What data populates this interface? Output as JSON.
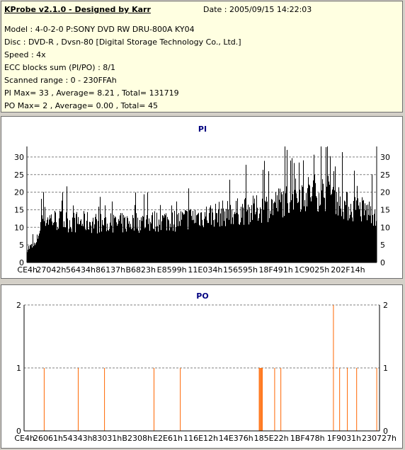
{
  "header": {
    "title": "KProbe v2.1.0 - Designed by Karr",
    "date_label": "Date : 2005/09/15 14:22:03"
  },
  "info_lines": [
    "Model : 4-0-2-0 P:SONY    DVD RW DRU-800A  KY04",
    "Disc : DVD-R , Dvsn-80 [Digital Storage Technology Co., Ltd.]",
    "Speed : 4x",
    "ECC blocks sum (PI/PO) : 8/1",
    "Scanned range : 0 - 230FFAh",
    "PI Max= 33 , Average= 8.21 , Total= 131719",
    "PO Max= 2 , Average= 0.00 , Total= 45"
  ],
  "colors": {
    "pi_bars": "#000000",
    "po_bars": "#ff6600",
    "title_text": "#000080",
    "grid": "#808080"
  },
  "chart_data": [
    {
      "type": "bar",
      "title": "PI",
      "ylim": [
        0,
        33
      ],
      "yticks": [
        0,
        5,
        10,
        15,
        20,
        25,
        30
      ],
      "xlim": [
        0,
        2297850
      ],
      "xtick_labels": [
        "CE4h",
        "27042h",
        "56434h",
        "86137h",
        "B6823h",
        "E8599h",
        "11E034h",
        "156595h",
        "18F491h",
        "1C9025h",
        "202F14h"
      ],
      "xtick_values": [
        3300,
        159810,
        353332,
        549175,
        747555,
        951705,
        1171508,
        1402261,
        1635473,
        1871909,
        2109204
      ],
      "grid": "horizontal dashed",
      "profile_x": [
        0,
        60000,
        100000,
        200000,
        300000,
        400000,
        500000,
        600000,
        700000,
        800000,
        900000,
        1000000,
        1100000,
        1200000,
        1300000,
        1400000,
        1500000,
        1600000,
        1700000,
        1800000,
        1900000,
        2000000,
        2100000,
        2200000,
        2297850
      ],
      "profile_y": [
        4,
        5,
        13,
        12,
        11.5,
        11.5,
        11,
        11,
        11.5,
        11.5,
        12,
        12,
        13,
        13.5,
        14,
        14.5,
        15,
        16,
        18,
        19.5,
        20,
        19.5,
        16,
        15,
        14
      ],
      "max_value": 33
    },
    {
      "type": "bar",
      "title": "PO",
      "ylim": [
        0,
        2
      ],
      "yticks": [
        0,
        1,
        2
      ],
      "xlim": [
        0,
        2297850
      ],
      "xtick_labels": [
        "CE4h",
        "26061h",
        "54343h",
        "83031h",
        "B2308h",
        "E2E61h",
        "116E12h",
        "14E376h",
        "185E22h",
        "1BF478h",
        "1F9031h",
        "230727h"
      ],
      "xtick_values": [
        3300,
        155745,
        345923,
        536625,
        730888,
        929377,
        1142290,
        1369974,
        1597986,
        1832056,
        2068529,
        2295591
      ],
      "grid": "horizontal dashed",
      "x": [
        130000,
        350000,
        520000,
        840000,
        1010000,
        1520000,
        1525000,
        1530000,
        1535000,
        1540000,
        1620000,
        1660000,
        2000000,
        2040000,
        2090000,
        2150000,
        2280000
      ],
      "y": [
        1,
        1,
        1,
        1,
        1,
        1,
        1,
        1,
        1,
        1,
        1,
        1,
        2,
        1,
        1,
        1,
        1
      ]
    }
  ]
}
